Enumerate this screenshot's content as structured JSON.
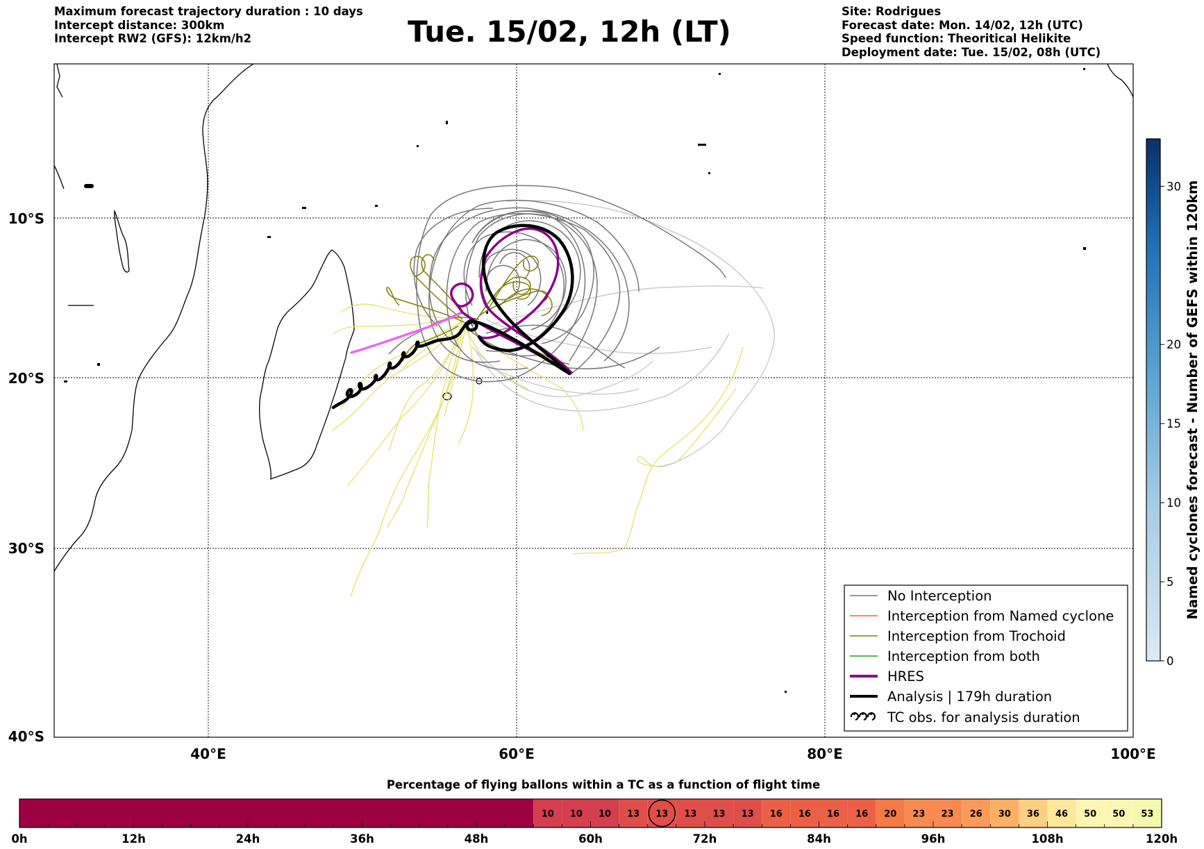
{
  "header_left": {
    "line1": "Maximum forecast trajectory duration : 10 days",
    "line2": "Intercept distance: 300km",
    "line3": "Intercept RW2 (GFS):  12km/h2"
  },
  "title": "Tue. 15/02, 12h (LT)",
  "header_right": {
    "line1": "Site: Rodrigues",
    "line2": "Forecast date: Mon. 14/02, 12h (UTC)",
    "line3": "Speed function: Theoritical Helikite",
    "line4": "Deployment date: Tue. 15/02, 08h (UTC)"
  },
  "map": {
    "lat_labels": [
      "10°S",
      "20°S",
      "30°S",
      "40°S"
    ],
    "lon_labels": [
      "40°E",
      "60°E",
      "80°E",
      "100°E"
    ],
    "lon_range": [
      30,
      100
    ],
    "lat_range": [
      -1,
      -40
    ]
  },
  "legend": {
    "items": [
      {
        "label": "No Interception",
        "color": "#777777"
      },
      {
        "label": "Interception from Named cyclone",
        "color": "#ff5a1f"
      },
      {
        "label": "Interception from Trochoid",
        "color": "#7f7f00"
      },
      {
        "label": "Interception from both",
        "color": "#1a9a1a"
      },
      {
        "label": "HRES",
        "color": "#8b008b"
      },
      {
        "label": "Analysis | 179h duration",
        "color": "#000000"
      },
      {
        "label": "TC obs. for analysis duration",
        "color": "#000000"
      }
    ]
  },
  "colorbar": {
    "label": "Named cyclones forecast - Number of GEFS within 120km",
    "ticks": [
      "0",
      "5",
      "10",
      "15",
      "20",
      "30"
    ],
    "tick_values": [
      0,
      5,
      10,
      15,
      20,
      30
    ],
    "max": 33,
    "color_low": "#dbe9f6",
    "color_high": "#08306b"
  },
  "timeline": {
    "title": "Percentage of flying ballons within a TC as a function of flight time",
    "hour_labels": [
      "0h",
      "12h",
      "24h",
      "36h",
      "48h",
      "60h",
      "72h",
      "84h",
      "96h",
      "108h",
      "120h"
    ],
    "start_hour": 54,
    "values": [
      10,
      10,
      10,
      13,
      13,
      13,
      13,
      13,
      16,
      16,
      16,
      16,
      20,
      23,
      23,
      26,
      30,
      36,
      46,
      50,
      50,
      53
    ],
    "circled_index": 4,
    "empty_color": "#9e0142"
  }
}
